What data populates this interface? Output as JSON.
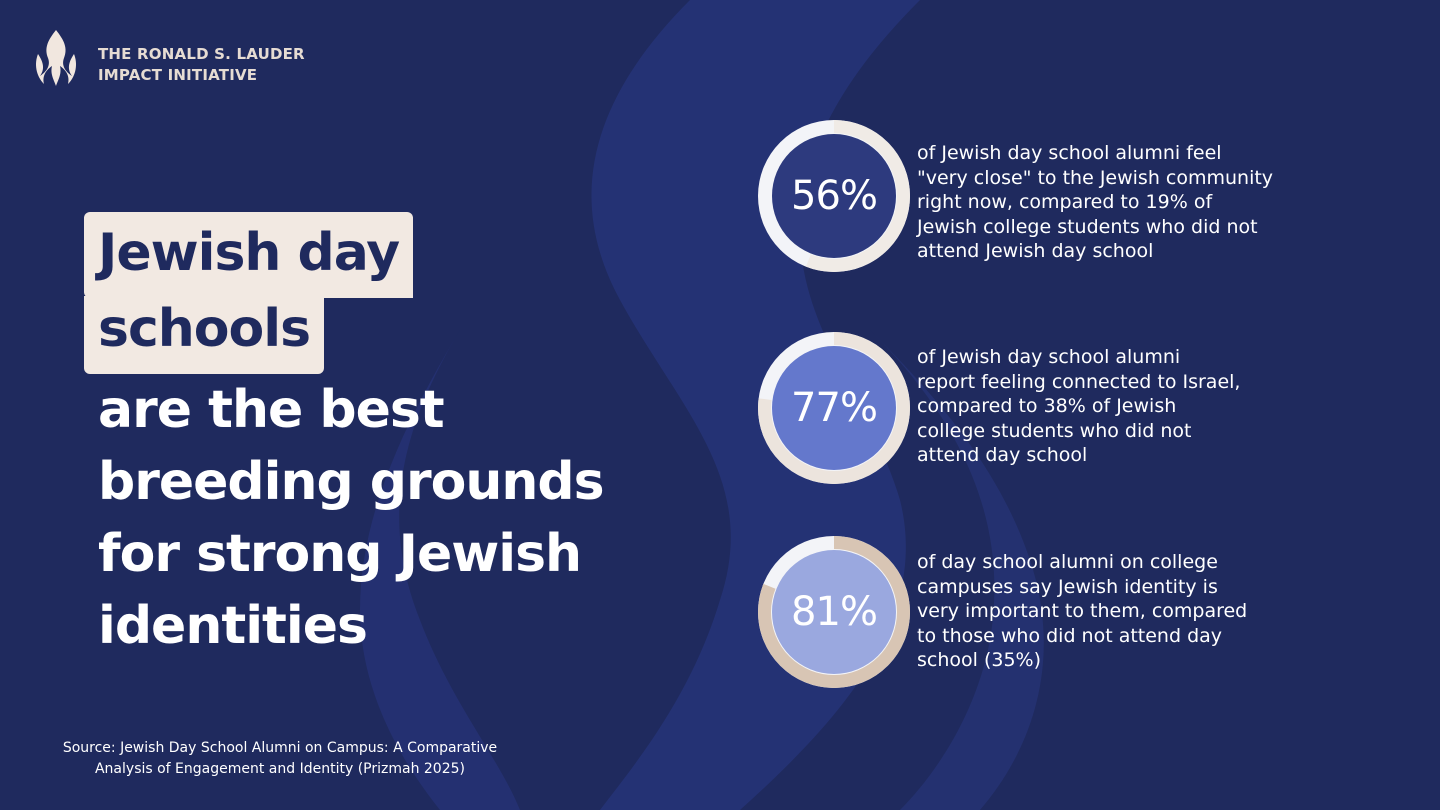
{
  "organization": {
    "name_lines": [
      "THE RONALD S. LAUDER",
      "IMPACT INITIATIVE"
    ]
  },
  "headline": {
    "highlight_lines": [
      "Jewish day",
      "schools"
    ],
    "rest_lines": [
      "are the best",
      "breeding grounds",
      "for strong Jewish",
      "identities"
    ]
  },
  "stats": [
    {
      "label": "56%",
      "value": 0.56,
      "fill_color": "#2d3a7e",
      "ring_color": "#f0ebe6",
      "description_lines": [
        "of Jewish day school alumni feel",
        "\"very close\" to the Jewish community",
        "right now, compared to 19% of",
        "Jewish college students who did not",
        "attend Jewish day school"
      ]
    },
    {
      "label": "77%",
      "value": 0.77,
      "fill_color": "#6478cc",
      "ring_color": "#ece4dd",
      "description_lines": [
        "of Jewish day school alumni",
        "report feeling connected to Israel,",
        "compared to 38% of Jewish",
        "college students who did not",
        "attend day school"
      ]
    },
    {
      "label": "81%",
      "value": 0.81,
      "fill_color": "#9aa8df",
      "ring_color": "#d8c5b4",
      "description_lines": [
        "of day school alumni on college",
        "campuses say Jewish identity is",
        "very important to them, compared",
        "to those who did not attend day",
        "school (35%)"
      ]
    }
  ],
  "source": {
    "lines": [
      "Source: Jewish Day School Alumni on Campus: A Comparative",
      "Analysis of Engagement and Identity (Prizmah 2025)"
    ]
  },
  "colors": {
    "background": "#1f2a5e",
    "flame_shape": "#27357a",
    "highlight_box": "#f2e9e2",
    "logo": "#f1e7df"
  }
}
